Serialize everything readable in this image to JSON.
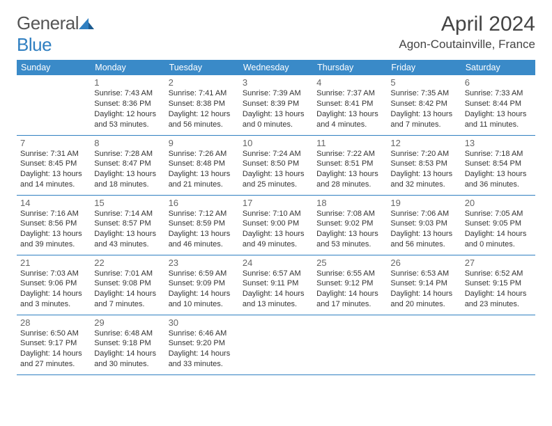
{
  "logo": {
    "word1": "General",
    "word2": "Blue"
  },
  "title": "April 2024",
  "location": "Agon-Coutainville, France",
  "colors": {
    "header_bg": "#3a8ac8",
    "border": "#2f7fc1",
    "text": "#333333",
    "logo_gray": "#555555",
    "logo_blue": "#2f7fc1"
  },
  "weekdays": [
    "Sunday",
    "Monday",
    "Tuesday",
    "Wednesday",
    "Thursday",
    "Friday",
    "Saturday"
  ],
  "weeks": [
    [
      null,
      {
        "n": "1",
        "sr": "Sunrise: 7:43 AM",
        "ss": "Sunset: 8:36 PM",
        "dl1": "Daylight: 12 hours",
        "dl2": "and 53 minutes."
      },
      {
        "n": "2",
        "sr": "Sunrise: 7:41 AM",
        "ss": "Sunset: 8:38 PM",
        "dl1": "Daylight: 12 hours",
        "dl2": "and 56 minutes."
      },
      {
        "n": "3",
        "sr": "Sunrise: 7:39 AM",
        "ss": "Sunset: 8:39 PM",
        "dl1": "Daylight: 13 hours",
        "dl2": "and 0 minutes."
      },
      {
        "n": "4",
        "sr": "Sunrise: 7:37 AM",
        "ss": "Sunset: 8:41 PM",
        "dl1": "Daylight: 13 hours",
        "dl2": "and 4 minutes."
      },
      {
        "n": "5",
        "sr": "Sunrise: 7:35 AM",
        "ss": "Sunset: 8:42 PM",
        "dl1": "Daylight: 13 hours",
        "dl2": "and 7 minutes."
      },
      {
        "n": "6",
        "sr": "Sunrise: 7:33 AM",
        "ss": "Sunset: 8:44 PM",
        "dl1": "Daylight: 13 hours",
        "dl2": "and 11 minutes."
      }
    ],
    [
      {
        "n": "7",
        "sr": "Sunrise: 7:31 AM",
        "ss": "Sunset: 8:45 PM",
        "dl1": "Daylight: 13 hours",
        "dl2": "and 14 minutes."
      },
      {
        "n": "8",
        "sr": "Sunrise: 7:28 AM",
        "ss": "Sunset: 8:47 PM",
        "dl1": "Daylight: 13 hours",
        "dl2": "and 18 minutes."
      },
      {
        "n": "9",
        "sr": "Sunrise: 7:26 AM",
        "ss": "Sunset: 8:48 PM",
        "dl1": "Daylight: 13 hours",
        "dl2": "and 21 minutes."
      },
      {
        "n": "10",
        "sr": "Sunrise: 7:24 AM",
        "ss": "Sunset: 8:50 PM",
        "dl1": "Daylight: 13 hours",
        "dl2": "and 25 minutes."
      },
      {
        "n": "11",
        "sr": "Sunrise: 7:22 AM",
        "ss": "Sunset: 8:51 PM",
        "dl1": "Daylight: 13 hours",
        "dl2": "and 28 minutes."
      },
      {
        "n": "12",
        "sr": "Sunrise: 7:20 AM",
        "ss": "Sunset: 8:53 PM",
        "dl1": "Daylight: 13 hours",
        "dl2": "and 32 minutes."
      },
      {
        "n": "13",
        "sr": "Sunrise: 7:18 AM",
        "ss": "Sunset: 8:54 PM",
        "dl1": "Daylight: 13 hours",
        "dl2": "and 36 minutes."
      }
    ],
    [
      {
        "n": "14",
        "sr": "Sunrise: 7:16 AM",
        "ss": "Sunset: 8:56 PM",
        "dl1": "Daylight: 13 hours",
        "dl2": "and 39 minutes."
      },
      {
        "n": "15",
        "sr": "Sunrise: 7:14 AM",
        "ss": "Sunset: 8:57 PM",
        "dl1": "Daylight: 13 hours",
        "dl2": "and 43 minutes."
      },
      {
        "n": "16",
        "sr": "Sunrise: 7:12 AM",
        "ss": "Sunset: 8:59 PM",
        "dl1": "Daylight: 13 hours",
        "dl2": "and 46 minutes."
      },
      {
        "n": "17",
        "sr": "Sunrise: 7:10 AM",
        "ss": "Sunset: 9:00 PM",
        "dl1": "Daylight: 13 hours",
        "dl2": "and 49 minutes."
      },
      {
        "n": "18",
        "sr": "Sunrise: 7:08 AM",
        "ss": "Sunset: 9:02 PM",
        "dl1": "Daylight: 13 hours",
        "dl2": "and 53 minutes."
      },
      {
        "n": "19",
        "sr": "Sunrise: 7:06 AM",
        "ss": "Sunset: 9:03 PM",
        "dl1": "Daylight: 13 hours",
        "dl2": "and 56 minutes."
      },
      {
        "n": "20",
        "sr": "Sunrise: 7:05 AM",
        "ss": "Sunset: 9:05 PM",
        "dl1": "Daylight: 14 hours",
        "dl2": "and 0 minutes."
      }
    ],
    [
      {
        "n": "21",
        "sr": "Sunrise: 7:03 AM",
        "ss": "Sunset: 9:06 PM",
        "dl1": "Daylight: 14 hours",
        "dl2": "and 3 minutes."
      },
      {
        "n": "22",
        "sr": "Sunrise: 7:01 AM",
        "ss": "Sunset: 9:08 PM",
        "dl1": "Daylight: 14 hours",
        "dl2": "and 7 minutes."
      },
      {
        "n": "23",
        "sr": "Sunrise: 6:59 AM",
        "ss": "Sunset: 9:09 PM",
        "dl1": "Daylight: 14 hours",
        "dl2": "and 10 minutes."
      },
      {
        "n": "24",
        "sr": "Sunrise: 6:57 AM",
        "ss": "Sunset: 9:11 PM",
        "dl1": "Daylight: 14 hours",
        "dl2": "and 13 minutes."
      },
      {
        "n": "25",
        "sr": "Sunrise: 6:55 AM",
        "ss": "Sunset: 9:12 PM",
        "dl1": "Daylight: 14 hours",
        "dl2": "and 17 minutes."
      },
      {
        "n": "26",
        "sr": "Sunrise: 6:53 AM",
        "ss": "Sunset: 9:14 PM",
        "dl1": "Daylight: 14 hours",
        "dl2": "and 20 minutes."
      },
      {
        "n": "27",
        "sr": "Sunrise: 6:52 AM",
        "ss": "Sunset: 9:15 PM",
        "dl1": "Daylight: 14 hours",
        "dl2": "and 23 minutes."
      }
    ],
    [
      {
        "n": "28",
        "sr": "Sunrise: 6:50 AM",
        "ss": "Sunset: 9:17 PM",
        "dl1": "Daylight: 14 hours",
        "dl2": "and 27 minutes."
      },
      {
        "n": "29",
        "sr": "Sunrise: 6:48 AM",
        "ss": "Sunset: 9:18 PM",
        "dl1": "Daylight: 14 hours",
        "dl2": "and 30 minutes."
      },
      {
        "n": "30",
        "sr": "Sunrise: 6:46 AM",
        "ss": "Sunset: 9:20 PM",
        "dl1": "Daylight: 14 hours",
        "dl2": "and 33 minutes."
      },
      null,
      null,
      null,
      null
    ]
  ]
}
